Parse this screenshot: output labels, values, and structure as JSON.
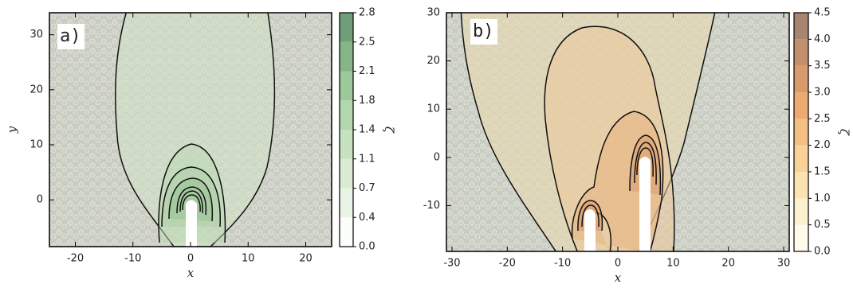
{
  "chart_data": [
    {
      "type": "contour",
      "panel_label": "a)",
      "xlabel": "x",
      "ylabel": "y",
      "xlim": [
        -24.5,
        24.5
      ],
      "ylim": [
        -8.5,
        34
      ],
      "xticks": [
        -20,
        -10,
        0,
        10,
        20
      ],
      "yticks": [
        0,
        10,
        20,
        30
      ],
      "colorbar": {
        "label": "ζ",
        "lim": [
          0,
          2.8
        ],
        "ticks": [
          {
            "value": 0,
            "label": "0.0"
          },
          {
            "value": 0.35,
            "label": "0.4"
          },
          0.7,
          {
            "value": 1.05,
            "label": "1.1"
          },
          1.4,
          {
            "value": 1.75,
            "label": "1.8"
          },
          2.1,
          {
            "value": 2.45,
            "label": "2.5"
          },
          2.8
        ],
        "colors": [
          "#fbfdfa",
          "#eaf4e6",
          "#d9ebd4",
          "#c6e2c0",
          "#b2d6ad",
          "#9cc89a",
          "#86b688",
          "#6f9f78"
        ]
      }
    },
    {
      "type": "contour",
      "panel_label": "b)",
      "xlabel": "x",
      "xlim": [
        -31,
        31
      ],
      "ylim": [
        -19.5,
        30
      ],
      "xticks": [
        -30,
        -20,
        -10,
        0,
        10,
        20,
        30
      ],
      "yticks": [
        -10,
        0,
        10,
        20,
        30
      ],
      "colorbar": {
        "label": "ζ",
        "lim": [
          0,
          4.5
        ],
        "ticks": [
          {
            "value": 0,
            "label": "0.0"
          },
          0.5,
          {
            "value": 1,
            "label": "1.0"
          },
          1.5,
          {
            "value": 2,
            "label": "2.0"
          },
          2.5,
          {
            "value": 3,
            "label": "3.0"
          },
          3.5,
          {
            "value": 4,
            "label": "4.0"
          },
          4.5
        ],
        "colors": [
          "#fffaea",
          "#fdf0cf",
          "#fbe3b1",
          "#f8d297",
          "#f3bf82",
          "#ecab70",
          "#d99a6c",
          "#c2906f",
          "#a88570"
        ]
      }
    }
  ]
}
